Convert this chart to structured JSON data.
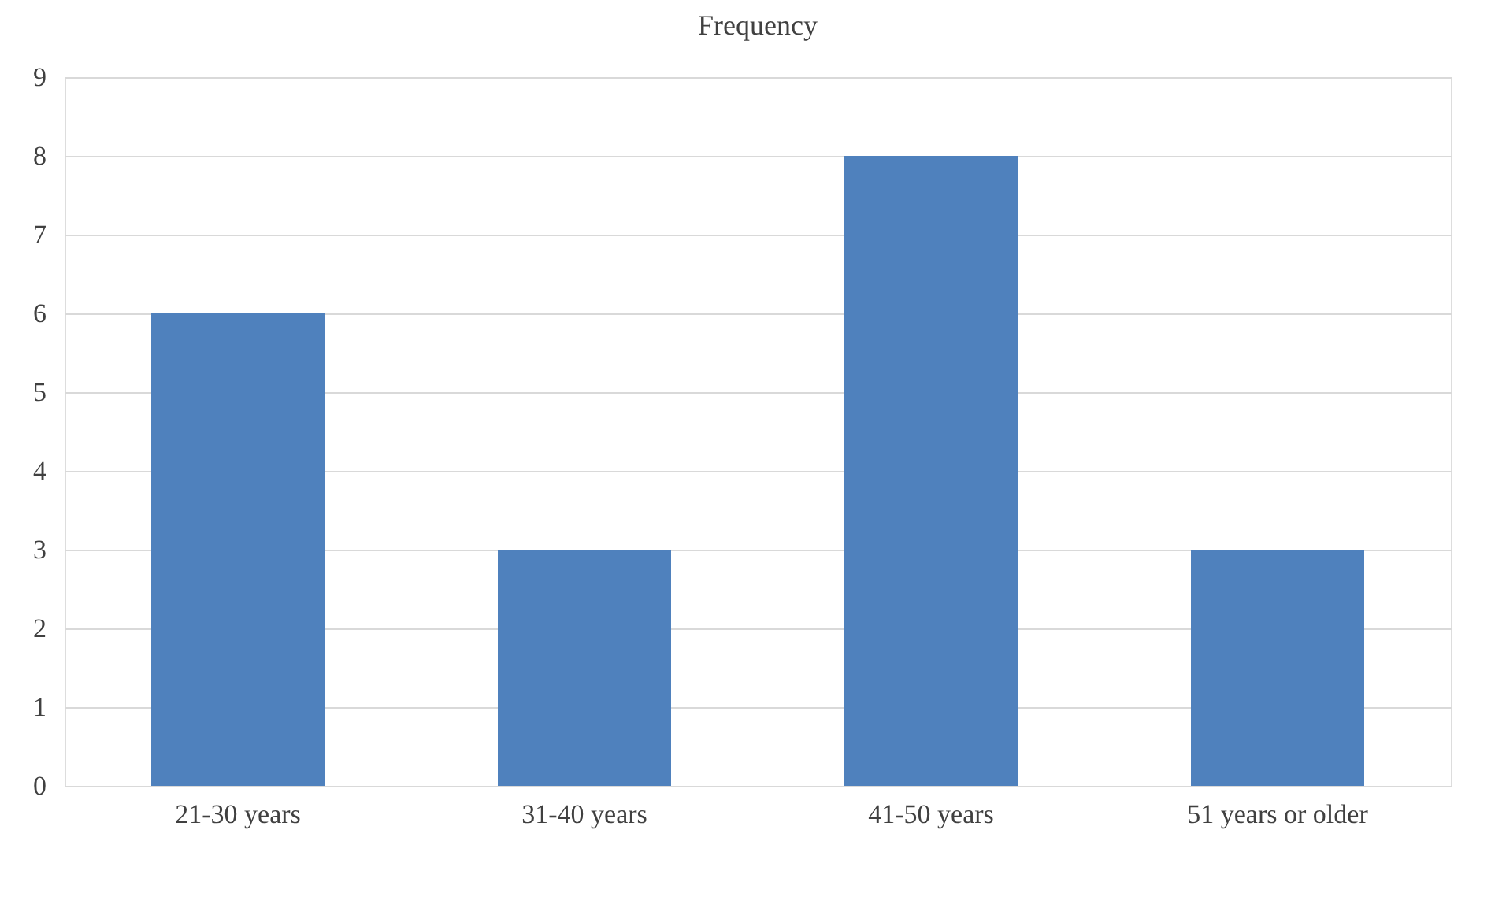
{
  "chart_data": {
    "type": "bar",
    "title": "Frequency",
    "categories": [
      "21-30 years",
      "31-40 years",
      "41-50 years",
      "51 years or older"
    ],
    "values": [
      6,
      3,
      8,
      3
    ],
    "color": "#4f81bd",
    "ylim": [
      0,
      9
    ],
    "yticks": [
      0,
      1,
      2,
      3,
      4,
      5,
      6,
      7,
      8,
      9
    ],
    "grid": "y"
  }
}
